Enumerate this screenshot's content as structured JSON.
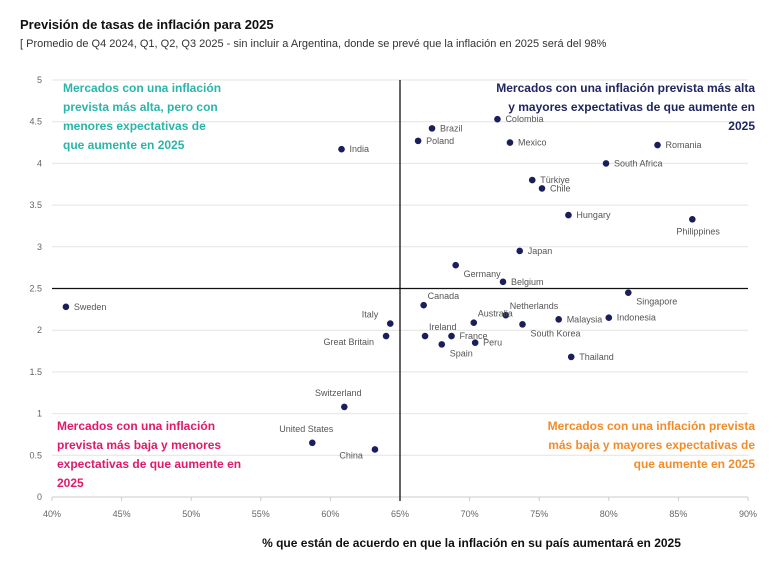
{
  "chart_data": {
    "type": "scatter",
    "title": "Previsión de tasas de inflación para 2025",
    "subtitle": "[ Promedio de Q4 2024, Q1, Q2, Q3 2025 - sin incluir a Argentina, donde se prevé que la inflación en 2025 será del 98%",
    "xlabel": "% que están de acuerdo en que la inflación en su país aumentará en 2025",
    "ylabel": "",
    "xlim": [
      40,
      90
    ],
    "ylim": [
      0,
      5
    ],
    "x_ticks": [
      40,
      45,
      50,
      55,
      60,
      65,
      70,
      75,
      80,
      85,
      90
    ],
    "x_tick_labels": [
      "40%",
      "45%",
      "50%",
      "55%",
      "60%",
      "65%",
      "70%",
      "75%",
      "80%",
      "85%",
      "90%"
    ],
    "y_ticks": [
      0,
      0.5,
      1,
      1.5,
      2,
      2.5,
      3,
      3.5,
      4,
      4.5,
      5
    ],
    "y_tick_labels": [
      "0",
      "0.5",
      "1",
      "1.5",
      "2",
      "2.5",
      "3",
      "3.5",
      "4",
      "4.5",
      "5"
    ],
    "reference_lines": {
      "x": 65,
      "y": 2.5
    },
    "grid": "horizontal",
    "point_color": "#1a1f5c",
    "points": [
      {
        "name": "Sweden",
        "x": 41,
        "y": 2.28,
        "anchor": "right"
      },
      {
        "name": "India",
        "x": 60.8,
        "y": 4.17,
        "anchor": "right"
      },
      {
        "name": "Brazil",
        "x": 67.3,
        "y": 4.42,
        "anchor": "right"
      },
      {
        "name": "Poland",
        "x": 66.3,
        "y": 4.27,
        "anchor": "right"
      },
      {
        "name": "Colombia",
        "x": 72,
        "y": 4.53,
        "anchor": "right"
      },
      {
        "name": "Mexico",
        "x": 72.9,
        "y": 4.25,
        "anchor": "right"
      },
      {
        "name": "Romania",
        "x": 83.5,
        "y": 4.22,
        "anchor": "right"
      },
      {
        "name": "South Africa",
        "x": 79.8,
        "y": 4.0,
        "anchor": "right"
      },
      {
        "name": "Türkiye",
        "x": 74.5,
        "y": 3.8,
        "anchor": "right"
      },
      {
        "name": "Chile",
        "x": 75.2,
        "y": 3.7,
        "anchor": "right"
      },
      {
        "name": "Hungary",
        "x": 77.1,
        "y": 3.38,
        "anchor": "right"
      },
      {
        "name": "Philippines",
        "x": 86,
        "y": 3.33,
        "anchor": "below"
      },
      {
        "name": "Japan",
        "x": 73.6,
        "y": 2.95,
        "anchor": "right"
      },
      {
        "name": "Germany",
        "x": 69,
        "y": 2.78,
        "anchor": "right-below"
      },
      {
        "name": "Belgium",
        "x": 72.4,
        "y": 2.58,
        "anchor": "right"
      },
      {
        "name": "Singapore",
        "x": 81.4,
        "y": 2.45,
        "anchor": "right-below"
      },
      {
        "name": "Canada",
        "x": 66.7,
        "y": 2.3,
        "anchor": "right-above"
      },
      {
        "name": "Netherlands",
        "x": 72.6,
        "y": 2.18,
        "anchor": "right-above"
      },
      {
        "name": "Australia",
        "x": 70.3,
        "y": 2.09,
        "anchor": "right-above"
      },
      {
        "name": "Italy",
        "x": 64.3,
        "y": 2.08,
        "anchor": "left-above"
      },
      {
        "name": "Ireland",
        "x": 66.8,
        "y": 1.93,
        "anchor": "right-above"
      },
      {
        "name": "France",
        "x": 68.7,
        "y": 1.93,
        "anchor": "right"
      },
      {
        "name": "Malaysia",
        "x": 76.4,
        "y": 2.13,
        "anchor": "right"
      },
      {
        "name": "Indonesia",
        "x": 80,
        "y": 2.15,
        "anchor": "right"
      },
      {
        "name": "South Korea",
        "x": 73.8,
        "y": 2.07,
        "anchor": "right-below"
      },
      {
        "name": "Great Britain",
        "x": 64.0,
        "y": 1.93,
        "anchor": "left-below"
      },
      {
        "name": "Peru",
        "x": 70.4,
        "y": 1.85,
        "anchor": "right"
      },
      {
        "name": "Spain",
        "x": 68.0,
        "y": 1.83,
        "anchor": "right-below"
      },
      {
        "name": "Thailand",
        "x": 77.3,
        "y": 1.68,
        "anchor": "right"
      },
      {
        "name": "Switzerland",
        "x": 61,
        "y": 1.08,
        "anchor": "above"
      },
      {
        "name": "United States",
        "x": 58.7,
        "y": 0.65,
        "anchor": "above"
      },
      {
        "name": "China",
        "x": 63.2,
        "y": 0.57,
        "anchor": "left-below"
      }
    ]
  },
  "quadrants": {
    "top_left": "Mercados con una inflación prevista más alta, pero con menores expectativas de que aumente en 2025",
    "top_right": "Mercados con una inflación prevista más alta y mayores expectativas de que aumente en 2025",
    "bottom_left": "Mercados con una inflación prevista más baja y menores expectativas de que aumente en 2025",
    "bottom_right": "Mercados con una inflación prevista más baja y mayores expectativas de que aumente en 2025"
  },
  "colors": {
    "top_left": "#2bb5a9",
    "top_right": "#1f2660",
    "bottom_left": "#e0196a",
    "bottom_right": "#f28c28"
  }
}
